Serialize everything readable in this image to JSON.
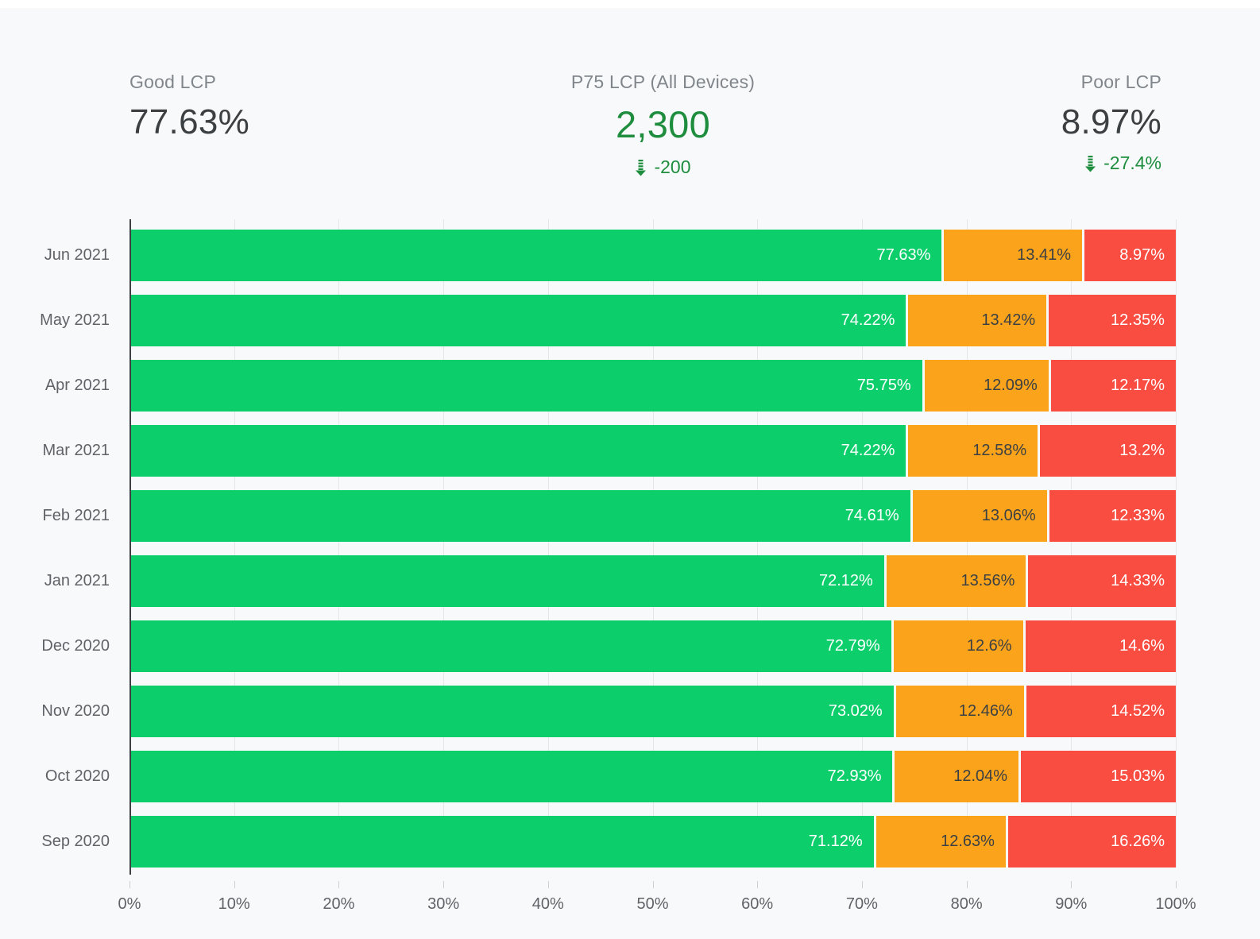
{
  "page": {
    "background": "#f8f9fa",
    "top_strip_color": "#ffffff"
  },
  "scorecards": {
    "good": {
      "label": "Good LCP",
      "value": "77.63%"
    },
    "p75": {
      "label": "P75 LCP (All Devices)",
      "value": "2,300",
      "change": "-200",
      "change_direction": "down"
    },
    "poor": {
      "label": "Poor LCP",
      "value": "8.97%",
      "change": "-27.4%",
      "change_direction": "down"
    }
  },
  "colors": {
    "good_bar": "#0cce6b",
    "needs_improvement_bar": "#fba41b",
    "poor_bar": "#f94d42",
    "positive_change_text": "#1e8e3e",
    "big_value_text": "#3c4043",
    "muted_label_text": "#80868b",
    "axis_text": "#5f6368"
  },
  "chart_data": {
    "type": "bar",
    "orientation": "horizontal",
    "stacked": true,
    "grid": true,
    "legend": "none",
    "xlim": [
      0,
      100
    ],
    "x_ticks": [
      "0%",
      "10%",
      "20%",
      "30%",
      "40%",
      "50%",
      "60%",
      "70%",
      "80%",
      "90%",
      "100%"
    ],
    "categories": [
      "Jun 2021",
      "May 2021",
      "Apr 2021",
      "Mar 2021",
      "Feb 2021",
      "Jan 2021",
      "Dec 2020",
      "Nov 2020",
      "Oct 2020",
      "Sep 2020"
    ],
    "series": [
      {
        "name": "good",
        "color": "#0cce6b",
        "label_color": "#ffffff",
        "values": [
          77.63,
          74.22,
          75.75,
          74.22,
          74.61,
          72.12,
          72.79,
          73.02,
          72.93,
          71.12
        ],
        "labels": [
          "77.63%",
          "74.22%",
          "75.75%",
          "74.22%",
          "74.61%",
          "72.12%",
          "72.79%",
          "73.02%",
          "72.93%",
          "71.12%"
        ]
      },
      {
        "name": "needs-improvement",
        "color": "#fba41b",
        "label_color": "#3c4043",
        "values": [
          13.41,
          13.42,
          12.09,
          12.58,
          13.06,
          13.56,
          12.6,
          12.46,
          12.04,
          12.63
        ],
        "labels": [
          "13.41%",
          "13.42%",
          "12.09%",
          "12.58%",
          "13.06%",
          "13.56%",
          "12.6%",
          "12.46%",
          "12.04%",
          "12.63%"
        ]
      },
      {
        "name": "poor",
        "color": "#f94d42",
        "label_color": "#ffffff",
        "values": [
          8.97,
          12.35,
          12.17,
          13.2,
          12.33,
          14.33,
          14.6,
          14.52,
          15.03,
          16.26
        ],
        "labels": [
          "8.97%",
          "12.35%",
          "12.17%",
          "13.2%",
          "12.33%",
          "14.33%",
          "14.6%",
          "14.52%",
          "15.03%",
          "16.26%"
        ]
      }
    ]
  }
}
